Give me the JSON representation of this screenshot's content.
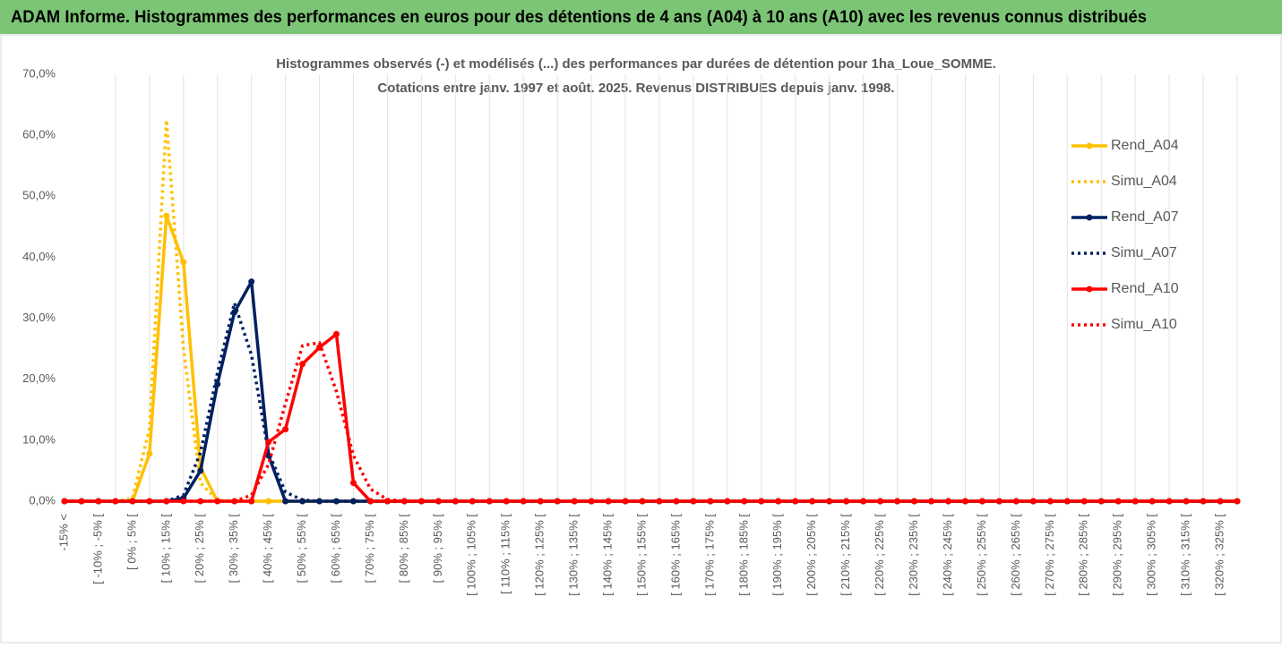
{
  "header": {
    "title": "ADAM Informe. Histogrammes des performances en euros pour des détentions de 4 ans (A04) à 10 ans (A10) avec les revenus connus distribués"
  },
  "chart_data": {
    "type": "line",
    "title": [
      "Histogrammes observés (-) et modélisés (...) des performances par durées de détention pour 1ha_Loue_SOMME.",
      "Cotations entre janv. 1997 et août. 2025. Revenus DISTRIBUES depuis janv. 1998."
    ],
    "categories": [
      "-15% <",
      null,
      "[ -10% ; -5% [",
      null,
      "[ 0% ; 5% [",
      null,
      "[ 10% ; 15% [",
      null,
      "[ 20% ; 25% [",
      null,
      "[ 30% ; 35% [",
      null,
      "[ 40% ; 45% [",
      null,
      "[ 50% ; 55% [",
      null,
      "[ 60% ; 65% [",
      null,
      "[ 70% ; 75% [",
      null,
      "[ 80% ; 85% [",
      null,
      "[ 90% ; 95% [",
      null,
      "[ 100% ; 105% [",
      null,
      "[ 110% ; 115% [",
      null,
      "[ 120% ; 125% [",
      null,
      "[ 130% ; 135% [",
      null,
      "[ 140% ; 145% [",
      null,
      "[ 150% ; 155% [",
      null,
      "[ 160% ; 165% [",
      null,
      "[ 170% ; 175% [",
      null,
      "[ 180% ; 185% [",
      null,
      "[ 190% ; 195% [",
      null,
      "[ 200% ; 205% [",
      null,
      "[ 210% ; 215% [",
      null,
      "[ 220% ; 225% [",
      null,
      "[ 230% ; 235% [",
      null,
      "[ 240% ; 245% [",
      null,
      "[ 250% ; 255% [",
      null,
      "[ 260% ; 265% [",
      null,
      "[ 270% ; 275% [",
      null,
      "[ 280% ; 285% [",
      null,
      "[ 290% ; 295% [",
      null,
      "[ 300% ; 305% [",
      null,
      "[ 310% ; 315% [",
      null,
      "[ 320% ; 325% [",
      null
    ],
    "series": [
      {
        "name": "Rend_A04",
        "color": "#ffc000",
        "style": "solid",
        "values": [
          0,
          0,
          0,
          0,
          0,
          7.8,
          46.8,
          39.2,
          5.5,
          0,
          0,
          0,
          0,
          0,
          0,
          0,
          0,
          0,
          0,
          0,
          0,
          0,
          0,
          0,
          0,
          0,
          0,
          0,
          0,
          0,
          0,
          0,
          0,
          0,
          0,
          0,
          0,
          0,
          0,
          0,
          0,
          0,
          0,
          0,
          0,
          0,
          0,
          0,
          0,
          0,
          0,
          0,
          0,
          0,
          0,
          0,
          0,
          0,
          0,
          0,
          0,
          0,
          0,
          0,
          0,
          0,
          0,
          0,
          0,
          0
        ]
      },
      {
        "name": "Simu_A04",
        "color": "#ffc000",
        "style": "dotted",
        "values": [
          0,
          0,
          0,
          0,
          0.5,
          12,
          62.5,
          25,
          3,
          0.2,
          0,
          0,
          0,
          0,
          0,
          0,
          0,
          0,
          0,
          0,
          0,
          0,
          0,
          0,
          0,
          0,
          0,
          0,
          0,
          0,
          0,
          0,
          0,
          0,
          0,
          0,
          0,
          0,
          0,
          0,
          0,
          0,
          0,
          0,
          0,
          0,
          0,
          0,
          0,
          0,
          0,
          0,
          0,
          0,
          0,
          0,
          0,
          0,
          0,
          0,
          0,
          0,
          0,
          0,
          0,
          0,
          0,
          0,
          0,
          0
        ]
      },
      {
        "name": "Rend_A07",
        "color": "#002060",
        "style": "solid",
        "values": [
          0,
          0,
          0,
          0,
          0,
          0,
          0,
          0.5,
          5,
          19.2,
          31,
          36,
          7.5,
          0,
          0,
          0,
          0,
          0,
          0,
          0,
          0,
          0,
          0,
          0,
          0,
          0,
          0,
          0,
          0,
          0,
          0,
          0,
          0,
          0,
          0,
          0,
          0,
          0,
          0,
          0,
          0,
          0,
          0,
          0,
          0,
          0,
          0,
          0,
          0,
          0,
          0,
          0,
          0,
          0,
          0,
          0,
          0,
          0,
          0,
          0,
          0,
          0,
          0,
          0,
          0,
          0,
          0,
          0,
          0,
          0
        ]
      },
      {
        "name": "Simu_A07",
        "color": "#002060",
        "style": "dotted",
        "values": [
          0,
          0,
          0,
          0,
          0,
          0,
          0,
          1,
          8,
          21,
          32.5,
          24,
          8,
          1.5,
          0.2,
          0,
          0,
          0,
          0,
          0,
          0,
          0,
          0,
          0,
          0,
          0,
          0,
          0,
          0,
          0,
          0,
          0,
          0,
          0,
          0,
          0,
          0,
          0,
          0,
          0,
          0,
          0,
          0,
          0,
          0,
          0,
          0,
          0,
          0,
          0,
          0,
          0,
          0,
          0,
          0,
          0,
          0,
          0,
          0,
          0,
          0,
          0,
          0,
          0,
          0,
          0,
          0,
          0,
          0,
          0
        ]
      },
      {
        "name": "Rend_A10",
        "color": "#ff0000",
        "style": "solid",
        "values": [
          0,
          0,
          0,
          0,
          0,
          0,
          0,
          0,
          0,
          0,
          0,
          0,
          9.7,
          11.8,
          22.5,
          25.2,
          27.4,
          3,
          0,
          0,
          0,
          0,
          0,
          0,
          0,
          0,
          0,
          0,
          0,
          0,
          0,
          0,
          0,
          0,
          0,
          0,
          0,
          0,
          0,
          0,
          0,
          0,
          0,
          0,
          0,
          0,
          0,
          0,
          0,
          0,
          0,
          0,
          0,
          0,
          0,
          0,
          0,
          0,
          0,
          0,
          0,
          0,
          0,
          0,
          0,
          0,
          0,
          0,
          0,
          0
        ]
      },
      {
        "name": "Simu_A10",
        "color": "#ff0000",
        "style": "dotted",
        "values": [
          0,
          0,
          0,
          0,
          0,
          0,
          0,
          0,
          0,
          0,
          0,
          1,
          6,
          16,
          25.5,
          26,
          18,
          7.5,
          2,
          0.3,
          0,
          0,
          0,
          0,
          0,
          0,
          0,
          0,
          0,
          0,
          0,
          0,
          0,
          0,
          0,
          0,
          0,
          0,
          0,
          0,
          0,
          0,
          0,
          0,
          0,
          0,
          0,
          0,
          0,
          0,
          0,
          0,
          0,
          0,
          0,
          0,
          0,
          0,
          0,
          0,
          0,
          0,
          0,
          0,
          0,
          0,
          0,
          0,
          0,
          0
        ]
      }
    ],
    "ylim": [
      0,
      70
    ],
    "yticks": [
      {
        "value": 0,
        "label": "0,0%"
      },
      {
        "value": 10,
        "label": "10,0%"
      },
      {
        "value": 20,
        "label": "20,0%"
      },
      {
        "value": 30,
        "label": "30,0%"
      },
      {
        "value": 40,
        "label": "40,0%"
      },
      {
        "value": 50,
        "label": "50,0%"
      },
      {
        "value": 60,
        "label": "60,0%"
      },
      {
        "value": 70,
        "label": "70,0%"
      }
    ],
    "grid": true,
    "legend": "right"
  }
}
